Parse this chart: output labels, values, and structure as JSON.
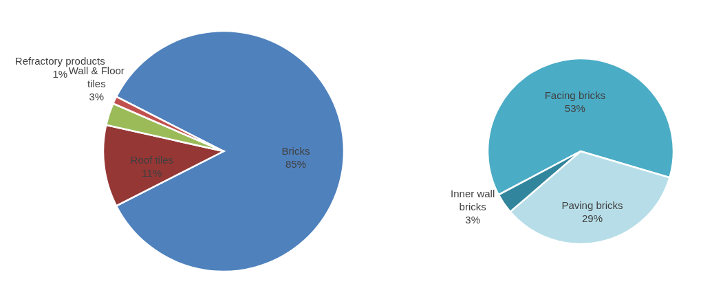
{
  "chart_data": [
    {
      "type": "pie",
      "categories": [
        "Bricks",
        "Roof tiles",
        "Wall & Floor tiles",
        "Refractory products"
      ],
      "values": [
        85,
        11,
        3,
        1
      ],
      "value_labels": [
        "85%",
        "11%",
        "3%",
        "1%"
      ],
      "colors": [
        "#4f81bd",
        "#953735",
        "#9bbb59",
        "#c0504d"
      ]
    },
    {
      "type": "pie",
      "categories": [
        "Facing bricks",
        "Paving bricks",
        "Inner wall bricks"
      ],
      "values": [
        53,
        29,
        3
      ],
      "value_labels": [
        "53%",
        "29%",
        "3%"
      ],
      "colors": [
        "#4bacc6",
        "#b7dee8",
        "#31859c"
      ]
    }
  ]
}
